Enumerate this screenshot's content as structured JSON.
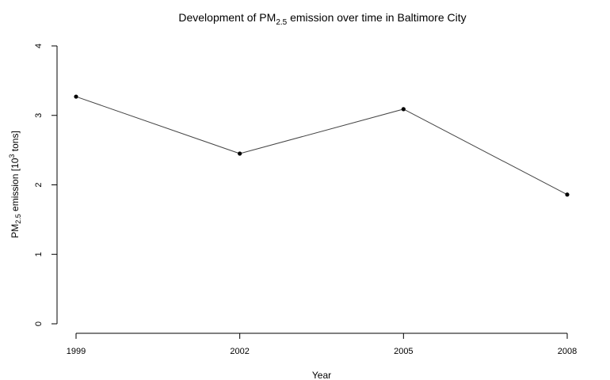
{
  "chart_data": {
    "type": "line",
    "title": {
      "prefix": "Development of PM",
      "sub": "2.5",
      "suffix": " emission over time in Baltimore City"
    },
    "xlabel": "Year",
    "ylabel": {
      "prefix": "PM",
      "sub": "2.5",
      "middle": " emission [10",
      "sup": "3",
      "suffix": " tons]"
    },
    "x": [
      1999,
      2002,
      2005,
      2008
    ],
    "x_tick_labels": [
      "1999",
      "2002",
      "2005",
      "2008"
    ],
    "y_ticks": [
      0,
      1,
      2,
      3,
      4
    ],
    "y_tick_labels": [
      "0",
      "1",
      "2",
      "3",
      "4"
    ],
    "ylim": [
      0,
      4
    ],
    "xlim": [
      1999,
      2008
    ],
    "grid": false,
    "series": [
      {
        "values": [
          3.27,
          2.45,
          3.09,
          1.86
        ],
        "color": "#444444",
        "marker_color": "#000000"
      }
    ]
  }
}
